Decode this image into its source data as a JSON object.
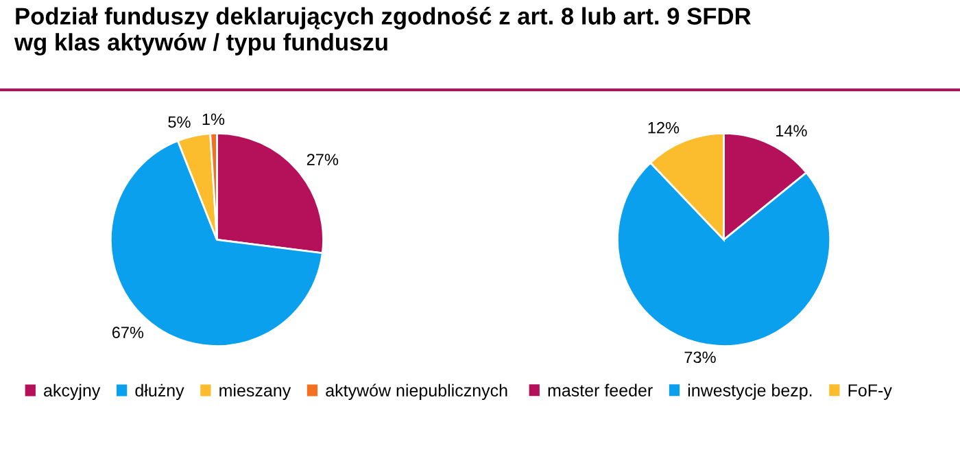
{
  "chart_data": [
    {
      "type": "pie",
      "title": "Podział funduszy deklarujących zgodność z art. 8 lub art. 9 SFDR\nwg klas aktywów / typu funduszu",
      "categories": [
        "akcyjny",
        "dłużny",
        "mieszany",
        "aktywów niepublicznych"
      ],
      "values": [
        27,
        67,
        5,
        1
      ],
      "value_labels": [
        "27%",
        "67%",
        "5%",
        "1%"
      ],
      "colors": [
        "#b5105a",
        "#0aa0ee",
        "#fbbc2d",
        "#f37021"
      ],
      "legend": "bottom"
    },
    {
      "type": "pie",
      "categories": [
        "master feeder",
        "inwestycje bezp.",
        "FoF-y"
      ],
      "values": [
        14,
        73,
        12
      ],
      "value_labels": [
        "14%",
        "73%",
        "12%"
      ],
      "colors": [
        "#b5105a",
        "#0aa0ee",
        "#fbbc2d"
      ],
      "legend": "bottom"
    }
  ]
}
